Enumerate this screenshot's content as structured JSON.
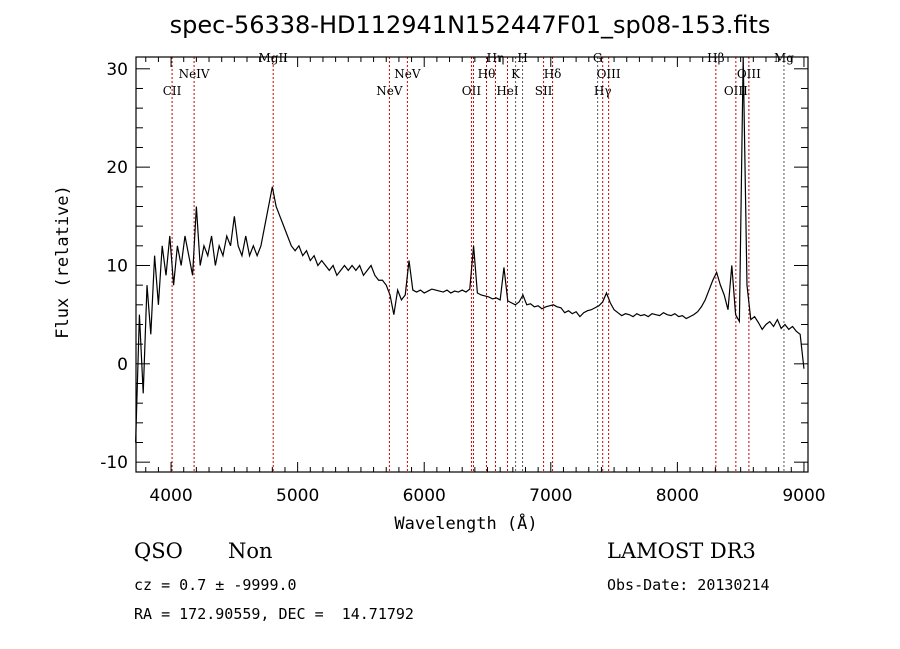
{
  "chart_data": {
    "type": "line",
    "title": "spec-56338-HD112941N152447F01_sp08-153.fits",
    "xlabel": "Wavelength (Å)",
    "ylabel": "Flux (relative)",
    "xlim": [
      3723,
      9032
    ],
    "ylim": [
      -11.0,
      31.2
    ],
    "xticks": [
      4000,
      5000,
      6000,
      7000,
      8000,
      9000
    ],
    "yticks": [
      -10,
      0,
      10,
      20,
      30
    ],
    "x_start": 3720,
    "x_step": 30,
    "flux": [
      -8,
      5,
      -3,
      8,
      3,
      11,
      6,
      12,
      9,
      13,
      8,
      12,
      10,
      13,
      11,
      9,
      16,
      10,
      12,
      11,
      13,
      10,
      12,
      11,
      13,
      12,
      15,
      12,
      11,
      13,
      11,
      12,
      11,
      12,
      14,
      16,
      18,
      16,
      15,
      14,
      13,
      12,
      11.5,
      12,
      11,
      11.5,
      10.5,
      11,
      10,
      10.5,
      10,
      9.5,
      10,
      9,
      9.5,
      10,
      9.5,
      10,
      9.5,
      10,
      9,
      9.5,
      10,
      9,
      8.5,
      8.5,
      8,
      7,
      5,
      7.5,
      6.5,
      7,
      10.5,
      7.5,
      7.3,
      7.5,
      7.2,
      7.4,
      7.6,
      7.5,
      7.4,
      7.3,
      7.5,
      7.2,
      7.4,
      7.3,
      7.5,
      7.3,
      7.6,
      12,
      7.2,
      7,
      6.9,
      6.8,
      6.6,
      6.7,
      6.5,
      9.8,
      6.4,
      6.2,
      6,
      6.3,
      7,
      6,
      6.1,
      5.8,
      5.9,
      5.6,
      5.8,
      5.9,
      6,
      5.8,
      5.7,
      5.2,
      5.4,
      5.1,
      5.3,
      4.8,
      5.2,
      5.4,
      5.5,
      5.7,
      5.9,
      6.3,
      7.2,
      6.2,
      5.5,
      5.2,
      4.9,
      5.1,
      5,
      4.8,
      5.1,
      4.9,
      5,
      4.8,
      5.1,
      5,
      4.9,
      5.2,
      5,
      4.9,
      5.1,
      4.8,
      4.9,
      4.6,
      4.8,
      5,
      5.3,
      5.8,
      6.5,
      7.5,
      8.5,
      9.3,
      8,
      7,
      5.5,
      10,
      5,
      4.3,
      33,
      8,
      4.5,
      4.8,
      4.2,
      3.5,
      4,
      4.3,
      3.8,
      4.5,
      3.6,
      4,
      3.5,
      3.8,
      3.3,
      3,
      -0.5
    ],
    "lines": [
      {
        "label": "CII",
        "wavelength": 4008,
        "kind": "emission"
      },
      {
        "label": "NeIV",
        "wavelength": 4182,
        "kind": "emission"
      },
      {
        "label": "MgII",
        "wavelength": 4807,
        "kind": "emission"
      },
      {
        "label": "NeV",
        "wavelength": 5725,
        "kind": "emission"
      },
      {
        "label": "NeV",
        "wavelength": 5867,
        "kind": "emission"
      },
      {
        "label": "OII",
        "wavelength": 6373,
        "kind": "emission"
      },
      {
        "label": "OII",
        "wavelength": 6389,
        "kind": "emission"
      },
      {
        "label": "Hθ",
        "wavelength": 6492,
        "kind": "emission"
      },
      {
        "label": "Hη",
        "wavelength": 6563,
        "kind": "emission"
      },
      {
        "label": "HeI",
        "wavelength": 6658,
        "kind": "emission"
      },
      {
        "label": "K",
        "wavelength": 6722,
        "kind": "absorption"
      },
      {
        "label": "H",
        "wavelength": 6777,
        "kind": "absorption"
      },
      {
        "label": "SII",
        "wavelength": 6943,
        "kind": "emission"
      },
      {
        "label": "Hδ",
        "wavelength": 7014,
        "kind": "emission"
      },
      {
        "label": "G",
        "wavelength": 7370,
        "kind": "absorption"
      },
      {
        "label": "Hγ",
        "wavelength": 7410,
        "kind": "emission"
      },
      {
        "label": "OIII",
        "wavelength": 7457,
        "kind": "emission"
      },
      {
        "label": "Hβ",
        "wavelength": 8304,
        "kind": "emission"
      },
      {
        "label": "OIII",
        "wavelength": 8462,
        "kind": "emission"
      },
      {
        "label": "OIII",
        "wavelength": 8565,
        "kind": "emission"
      },
      {
        "label": "Mg",
        "wavelength": 8842,
        "kind": "absorption"
      }
    ],
    "colors": {
      "spectrum": "#000000",
      "emission": "#cc0000",
      "absorption": "#555555",
      "axes": "#000000"
    }
  },
  "info": {
    "class": "QSO",
    "subclass": "Non",
    "cz": "cz = 0.7 ± -9999.0",
    "radec": "RA = 172.90559, DEC =  14.71792",
    "survey": "LAMOST DR3",
    "obs_date": "Obs-Date: 20130214"
  }
}
